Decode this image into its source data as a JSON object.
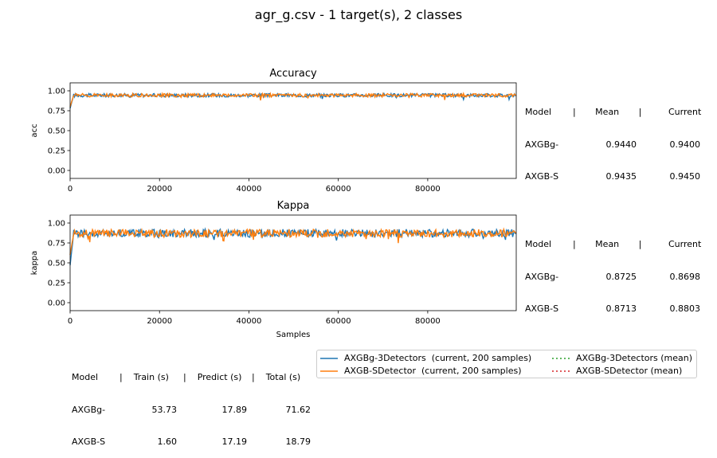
{
  "figure": {
    "title": "agr_g.csv - 1 target(s), 2 classes"
  },
  "colors": {
    "series_current_1": "#1f77b4",
    "series_current_2": "#ff7f0e",
    "series_mean_1": "#2ca02c",
    "series_mean_2": "#d62728"
  },
  "chart_data": [
    {
      "type": "line",
      "title": "Accuracy",
      "xlabel": "",
      "ylabel": "acc",
      "xlim": [
        0,
        99800
      ],
      "ylim": [
        -0.1,
        1.1
      ],
      "x_ticks": [
        "0",
        "20000",
        "40000",
        "60000",
        "80000"
      ],
      "y_ticks": [
        "0.00",
        "0.25",
        "0.50",
        "0.75",
        "1.00"
      ],
      "x_step": 200,
      "series": [
        {
          "name": "AXGBg-3Detectors  (current, 200 samples)",
          "start": 0.78,
          "mean": 0.944,
          "current": 0.94
        },
        {
          "name": "AXGB-SDetector  (current, 200 samples)",
          "start": 0.8,
          "mean": 0.9435,
          "current": 0.945
        }
      ],
      "side_table": {
        "headers": [
          "Model",
          "|       Mean       |",
          "Current"
        ],
        "rows": [
          [
            "AXGBg-",
            "0.9440",
            "0.9400"
          ],
          [
            "AXGB-S",
            "0.9435",
            "0.9450"
          ]
        ]
      }
    },
    {
      "type": "line",
      "title": "Kappa",
      "xlabel": "Samples",
      "ylabel": "kappa",
      "xlim": [
        0,
        99800
      ],
      "ylim": [
        -0.1,
        1.1
      ],
      "x_ticks": [
        "0",
        "20000",
        "40000",
        "60000",
        "80000"
      ],
      "y_ticks": [
        "0.00",
        "0.25",
        "0.50",
        "0.75",
        "1.00"
      ],
      "x_step": 200,
      "series": [
        {
          "name": "AXGBg-3Detectors  (current, 200 samples)",
          "start": 0.47,
          "mean": 0.8725,
          "current": 0.8698
        },
        {
          "name": "AXGB-SDetector  (current, 200 samples)",
          "start": 0.6,
          "mean": 0.8713,
          "current": 0.8803
        }
      ],
      "side_table": {
        "headers": [
          "Model",
          "|       Mean       |",
          "Current"
        ],
        "rows": [
          [
            "AXGBg-",
            "0.8725",
            "0.8698"
          ],
          [
            "AXGB-S",
            "0.8713",
            "0.8803"
          ]
        ]
      }
    }
  ],
  "time_table": {
    "headers": [
      "Model",
      "|    Train (s)",
      "|    Predict (s)",
      "|    Total (s)"
    ],
    "rows": [
      [
        "AXGBg-",
        "53.73",
        "17.89",
        "71.62"
      ],
      [
        "AXGB-S",
        "1.60",
        "17.19",
        "18.79"
      ]
    ]
  },
  "legend": {
    "placement": "bottom-right",
    "items": [
      {
        "label": "AXGBg-3Detectors  (current, 200 samples)",
        "style": "solid",
        "color": "#1f77b4"
      },
      {
        "label": "AXGB-SDetector  (current, 200 samples)",
        "style": "solid",
        "color": "#ff7f0e"
      },
      {
        "label": "AXGBg-3Detectors (mean)",
        "style": "dotted",
        "color": "#2ca02c"
      },
      {
        "label": "AXGB-SDetector (mean)",
        "style": "dotted",
        "color": "#d62728"
      }
    ]
  }
}
